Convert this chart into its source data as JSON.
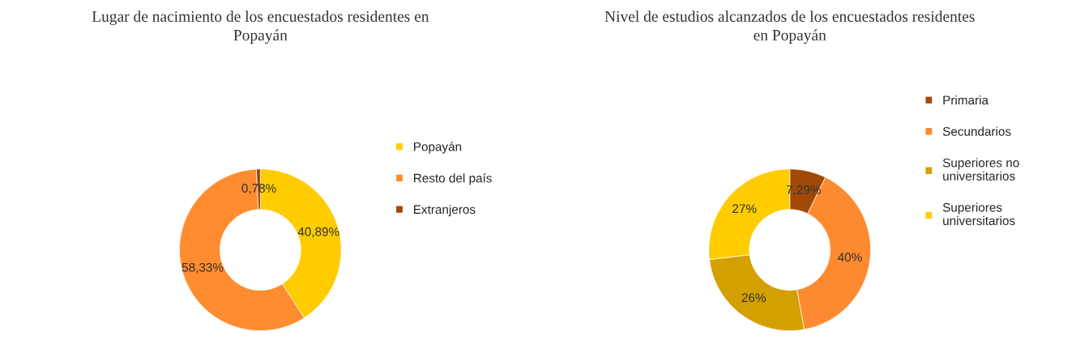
{
  "chart_data": [
    {
      "type": "donut",
      "title": "Lugar de nacimiento de los encuestados residentes en Popayán",
      "categories": [
        "Popayán",
        "Resto del país",
        "Extranjeros"
      ],
      "values": [
        40.89,
        58.33,
        0.78
      ],
      "colors": [
        "#ffcc00",
        "#ff8c2e",
        "#a0480a"
      ],
      "value_labels": [
        "40,89%",
        "58,33%",
        "0,78%"
      ],
      "legend": "right"
    },
    {
      "type": "donut",
      "title": "Nivel de estudios alcanzados de los encuestados residentes en Popayán",
      "categories": [
        "Primaria",
        "Secundarios",
        "Superiores no universitarios",
        "Superiores universitarios"
      ],
      "values": [
        7.29,
        40,
        26,
        27
      ],
      "colors": [
        "#a14a07",
        "#fd8a30",
        "#d4a000",
        "#ffcc00"
      ],
      "value_labels": [
        "7,29%",
        "40%",
        "26%",
        "27%"
      ],
      "legend": "right"
    }
  ]
}
